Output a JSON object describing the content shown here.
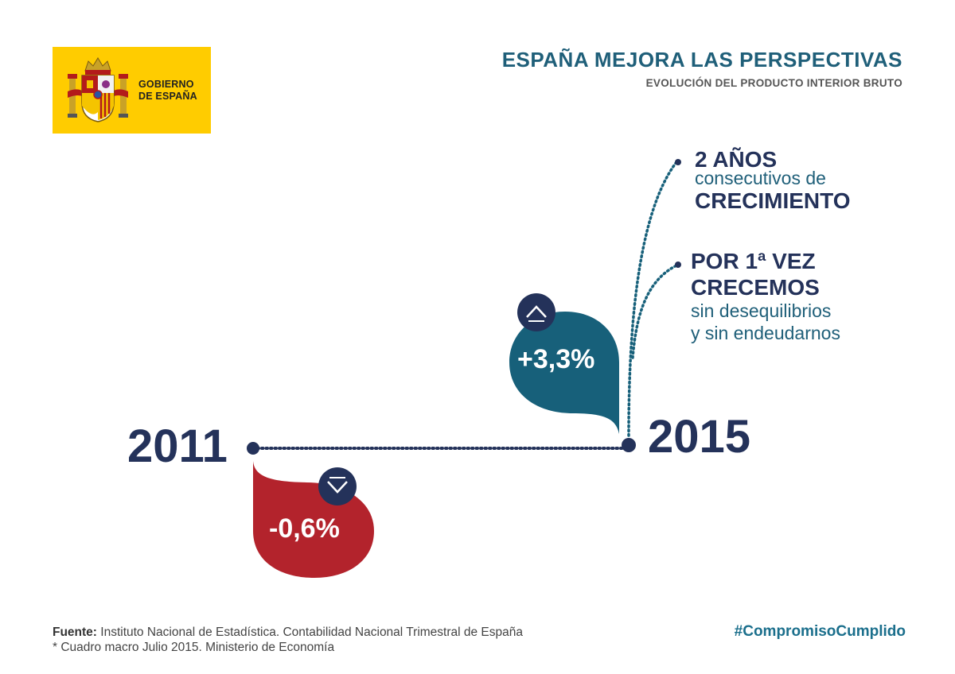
{
  "header": {
    "logo_line1": "GOBIERNO",
    "logo_line2": "DE ESPAÑA",
    "title": "ESPAÑA MEJORA LAS PERSPECTIVAS",
    "subtitle": "EVOLUCIÓN DEL PRODUCTO INTERIOR BRUTO"
  },
  "chart_data": {
    "type": "timeline",
    "title": "ESPAÑA MEJORA LAS PERSPECTIVAS",
    "subtitle": "EVOLUCIÓN DEL PRODUCTO INTERIOR BRUTO",
    "points": [
      {
        "year": "2011",
        "value": -0.6,
        "label": "-0,6%",
        "direction": "down",
        "color": "#b3232c"
      },
      {
        "year": "2015",
        "value": 3.3,
        "label": "+3,3%",
        "direction": "up",
        "color": "#17607a"
      }
    ]
  },
  "notes": {
    "n1_line1": "2 AÑOS",
    "n1_line2": "consecutivos de",
    "n1_line3": "CRECIMIENTO",
    "n2_line1": "POR 1ª VEZ",
    "n2_line2": "CRECEMOS",
    "n2_line3": "sin desequilibrios",
    "n2_line4": "y sin endeudarnos"
  },
  "colors": {
    "navy": "#24325a",
    "teal": "#17607a",
    "red": "#b3232c",
    "yellow": "#FFCC00"
  },
  "icons": {
    "up": "chevron-up-icon",
    "down": "chevron-down-icon"
  },
  "footer": {
    "source_label": "Fuente:",
    "source_text": " Instituto Nacional de Estadística. Contabilidad Nacional Trimestral de España",
    "note": "* Cuadro macro Julio 2015. Ministerio de Economía",
    "hashtag": "#CompromisoCumplido"
  }
}
